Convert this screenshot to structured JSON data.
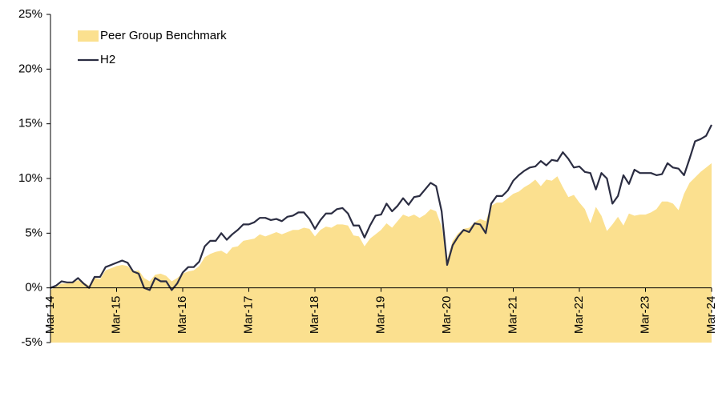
{
  "chart_data": {
    "type": "area_line",
    "categories": [
      "Mar-14",
      null,
      null,
      null,
      null,
      null,
      null,
      null,
      null,
      null,
      null,
      null,
      "Mar-15",
      null,
      null,
      null,
      null,
      null,
      null,
      null,
      null,
      null,
      null,
      null,
      "Mar-16",
      null,
      null,
      null,
      null,
      null,
      null,
      null,
      null,
      null,
      null,
      null,
      "Mar-17",
      null,
      null,
      null,
      null,
      null,
      null,
      null,
      null,
      null,
      null,
      null,
      "Mar-18",
      null,
      null,
      null,
      null,
      null,
      null,
      null,
      null,
      null,
      null,
      null,
      "Mar-19",
      null,
      null,
      null,
      null,
      null,
      null,
      null,
      null,
      null,
      null,
      null,
      "Mar-20",
      null,
      null,
      null,
      null,
      null,
      null,
      null,
      null,
      null,
      null,
      null,
      "Mar-21",
      null,
      null,
      null,
      null,
      null,
      null,
      null,
      null,
      null,
      null,
      null,
      "Mar-22",
      null,
      null,
      null,
      null,
      null,
      null,
      null,
      null,
      null,
      null,
      null,
      "Mar-23",
      null,
      null,
      null,
      null,
      null,
      null,
      null,
      null,
      null,
      null,
      null,
      "Mar-24"
    ],
    "series": [
      {
        "name": "Peer Group Benchmark",
        "color": "#fbe08f",
        "style": "area",
        "values": [
          -0.2,
          0.1,
          0.4,
          0.4,
          0.5,
          0.7,
          0.5,
          0.2,
          0.9,
          0.8,
          1.6,
          1.8,
          2.0,
          2.1,
          2.0,
          1.5,
          1.6,
          0.9,
          0.6,
          1.2,
          1.3,
          1.1,
          0.6,
          0.9,
          1.3,
          1.5,
          1.6,
          2.0,
          2.8,
          3.1,
          3.3,
          3.4,
          3.1,
          3.7,
          3.8,
          4.3,
          4.4,
          4.5,
          4.9,
          4.7,
          4.9,
          5.1,
          4.9,
          5.1,
          5.3,
          5.3,
          5.5,
          5.4,
          4.7,
          5.3,
          5.6,
          5.5,
          5.8,
          5.8,
          5.7,
          4.8,
          4.7,
          3.8,
          4.5,
          4.9,
          5.3,
          5.9,
          5.5,
          6.1,
          6.7,
          6.5,
          6.7,
          6.4,
          6.7,
          7.2,
          7.0,
          5.6,
          2.6,
          4.3,
          5.0,
          5.4,
          5.5,
          6.0,
          6.3,
          6.1,
          7.5,
          7.8,
          7.8,
          8.2,
          8.6,
          8.8,
          9.2,
          9.5,
          9.9,
          9.3,
          9.9,
          9.8,
          10.2,
          9.2,
          8.3,
          8.5,
          7.8,
          7.2,
          5.9,
          7.4,
          6.6,
          5.2,
          5.8,
          6.5,
          5.7,
          6.8,
          6.6,
          6.7,
          6.7,
          6.9,
          7.2,
          7.9,
          7.9,
          7.7,
          7.1,
          8.6,
          9.6,
          10.1,
          10.6,
          11.0,
          11.4
        ]
      },
      {
        "name": "H2",
        "color": "#2b2d42",
        "style": "line",
        "values": [
          0,
          0.2,
          0.6,
          0.5,
          0.5,
          0.9,
          0.4,
          0.0,
          1.0,
          1.0,
          1.9,
          2.1,
          2.3,
          2.5,
          2.3,
          1.5,
          1.3,
          0.0,
          -0.2,
          0.9,
          0.6,
          0.6,
          -0.2,
          0.4,
          1.4,
          1.9,
          1.9,
          2.4,
          3.8,
          4.3,
          4.3,
          5.0,
          4.4,
          4.9,
          5.3,
          5.8,
          5.8,
          6.0,
          6.4,
          6.4,
          6.2,
          6.3,
          6.1,
          6.5,
          6.6,
          6.9,
          6.9,
          6.3,
          5.4,
          6.2,
          6.8,
          6.8,
          7.2,
          7.3,
          6.8,
          5.7,
          5.7,
          4.6,
          5.7,
          6.6,
          6.7,
          7.7,
          7.0,
          7.5,
          8.2,
          7.6,
          8.3,
          8.4,
          9.0,
          9.6,
          9.3,
          7.0,
          2.1,
          3.9,
          4.7,
          5.3,
          5.1,
          5.9,
          5.8,
          5.0,
          7.7,
          8.4,
          8.4,
          8.9,
          9.8,
          10.3,
          10.7,
          11.0,
          11.1,
          11.6,
          11.2,
          11.7,
          11.6,
          12.4,
          11.8,
          11.0,
          11.1,
          10.6,
          10.5,
          9.0,
          10.5,
          10.0,
          7.7,
          8.4,
          10.3,
          9.5,
          10.8,
          10.5,
          10.5,
          10.5,
          10.3,
          10.4,
          11.4,
          11.0,
          10.9,
          10.3,
          11.8,
          13.4,
          13.6,
          13.9,
          14.9
        ]
      }
    ],
    "ylim": [
      -5,
      25
    ],
    "yticks": [
      {
        "value": -5,
        "label": "-5%"
      },
      {
        "value": 0,
        "label": "0%"
      },
      {
        "value": 5,
        "label": "5%"
      },
      {
        "value": 10,
        "label": "10%"
      },
      {
        "value": 15,
        "label": "15%"
      },
      {
        "value": 20,
        "label": "20%"
      },
      {
        "value": 25,
        "label": "25%"
      }
    ],
    "legend": "upper left"
  }
}
